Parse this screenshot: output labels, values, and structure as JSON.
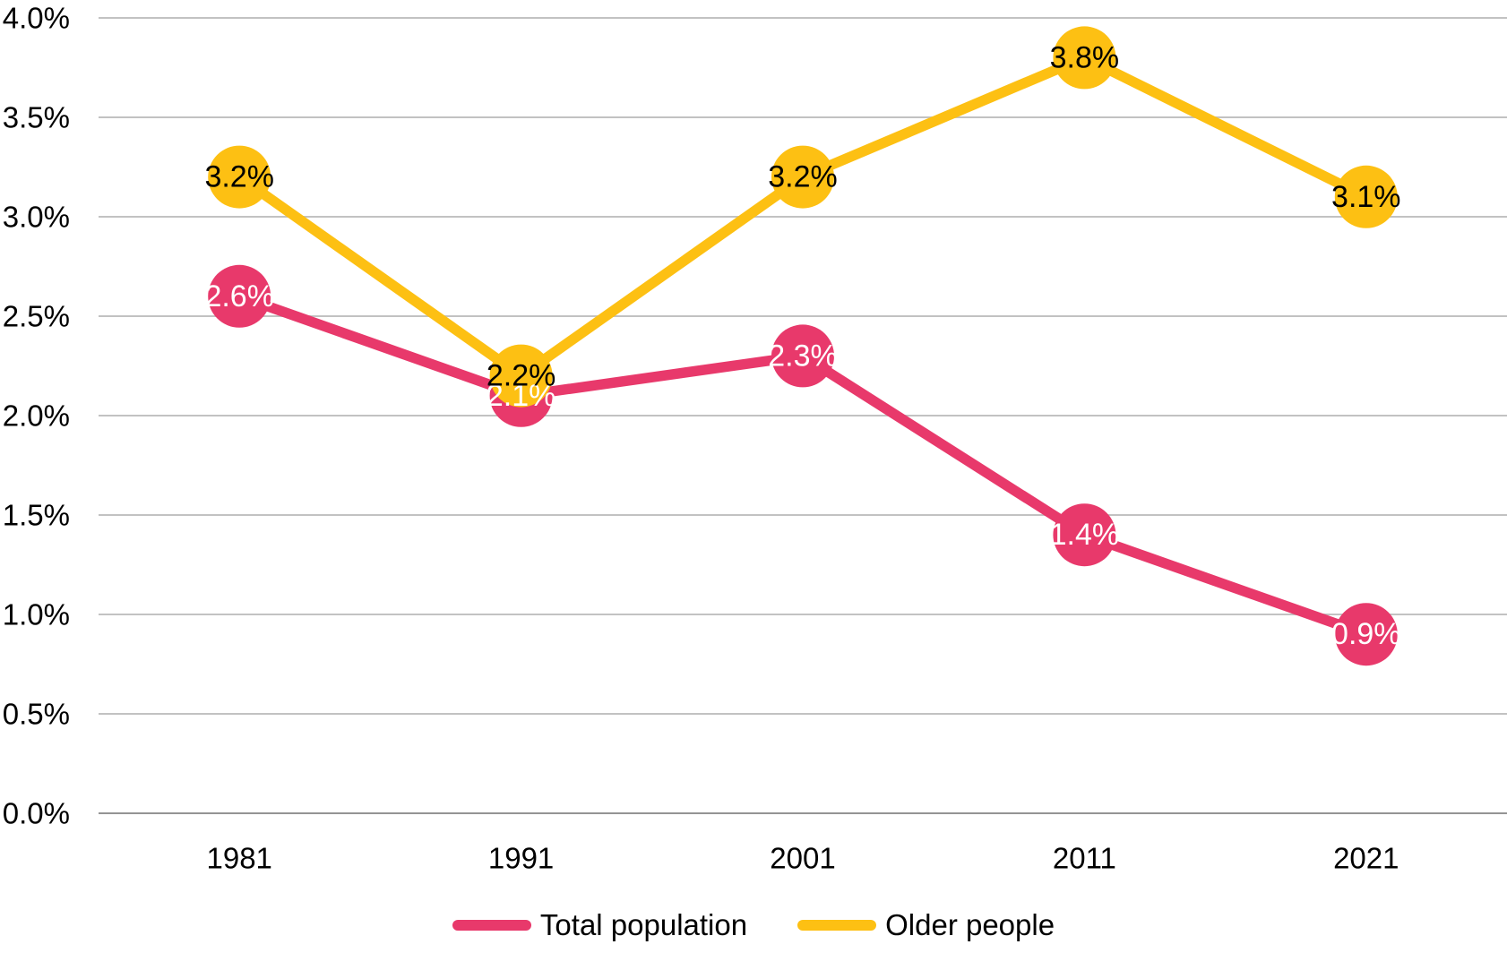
{
  "chart_data": {
    "type": "line",
    "categories": [
      "1981",
      "1991",
      "2001",
      "2011",
      "2021"
    ],
    "series": [
      {
        "name": "Total population",
        "values": [
          2.6,
          2.1,
          2.3,
          1.4,
          0.9
        ],
        "point_labels": [
          "2.6%",
          "2.1%",
          "2.3%",
          "1.4%",
          "0.9%"
        ],
        "color": "#E8396B",
        "label_color": "#FFFFFF"
      },
      {
        "name": "Older people",
        "values": [
          3.2,
          2.2,
          3.2,
          3.8,
          3.1
        ],
        "point_labels": [
          "3.2%",
          "2.2%",
          "3.2%",
          "3.8%",
          "3.1%"
        ],
        "color": "#FDC013",
        "label_color": "#000000"
      }
    ],
    "ylim": [
      0,
      4
    ],
    "ytick_step": 0.5,
    "ytick_labels": [
      "0.0%",
      "0.5%",
      "1.0%",
      "1.5%",
      "2.0%",
      "2.5%",
      "3.0%",
      "3.5%",
      "4.0%"
    ],
    "grid": true,
    "legend_position": "bottom",
    "marker_style": "filled-circle-with-label",
    "colors": {
      "gridline": "#C2C2C2",
      "axis_line": "#949494",
      "tick_text": "#000000",
      "background": "#FFFFFF"
    }
  }
}
